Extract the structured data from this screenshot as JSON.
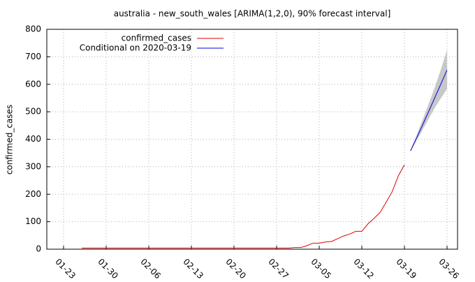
{
  "chart_data": {
    "type": "line",
    "title": "australia - new_south_wales [ARIMA(1,2,0), 90% forecast interval]",
    "y_label": "confirmed_cases",
    "categories": [
      "01-23",
      null,
      null,
      null,
      null,
      null,
      null,
      "01-30",
      null,
      null,
      null,
      null,
      null,
      null,
      "02-06",
      null,
      null,
      null,
      null,
      null,
      null,
      "02-13",
      null,
      null,
      null,
      null,
      null,
      null,
      "02-20",
      null,
      null,
      null,
      null,
      null,
      null,
      "02-27",
      null,
      null,
      null,
      null,
      null,
      null,
      "03-05",
      null,
      null,
      null,
      null,
      null,
      null,
      "03-12",
      null,
      null,
      null,
      null,
      null,
      null,
      "03-19",
      null,
      null,
      null,
      null,
      null,
      null,
      "03-26"
    ],
    "series": [
      {
        "name": "confirmed_cases",
        "color": "#e00000",
        "values": [
          null,
          null,
          null,
          4,
          4,
          4,
          4,
          4,
          4,
          4,
          4,
          4,
          4,
          4,
          4,
          4,
          4,
          4,
          4,
          4,
          4,
          4,
          4,
          4,
          4,
          4,
          4,
          4,
          4,
          4,
          4,
          4,
          4,
          4,
          4,
          4,
          4,
          4,
          6,
          6,
          13,
          22,
          22,
          26,
          28,
          38,
          48,
          55,
          65,
          65,
          92,
          112,
          134,
          171,
          210,
          267,
          307,
          null,
          null,
          null,
          null,
          null,
          null,
          null
        ]
      },
      {
        "name": "Conditional on 2020-03-19",
        "color": "#0000e0",
        "band_color": "#c8c8c8",
        "values": [
          null,
          null,
          null,
          null,
          null,
          null,
          null,
          null,
          null,
          null,
          null,
          null,
          null,
          null,
          null,
          null,
          null,
          null,
          null,
          null,
          null,
          null,
          null,
          null,
          null,
          null,
          null,
          null,
          null,
          null,
          null,
          null,
          null,
          null,
          null,
          null,
          null,
          null,
          null,
          null,
          null,
          null,
          null,
          null,
          null,
          null,
          null,
          null,
          null,
          null,
          null,
          null,
          null,
          null,
          null,
          null,
          null,
          358,
          405,
          453,
          502,
          552,
          602,
          652
        ],
        "lower": [
          null,
          null,
          null,
          null,
          null,
          null,
          null,
          null,
          null,
          null,
          null,
          null,
          null,
          null,
          null,
          null,
          null,
          null,
          null,
          null,
          null,
          null,
          null,
          null,
          null,
          null,
          null,
          null,
          null,
          null,
          null,
          null,
          null,
          null,
          null,
          null,
          null,
          null,
          null,
          null,
          null,
          null,
          null,
          null,
          null,
          null,
          null,
          null,
          null,
          null,
          null,
          null,
          null,
          null,
          null,
          null,
          null,
          355,
          395,
          435,
          475,
          515,
          550,
          583
        ],
        "upper": [
          null,
          null,
          null,
          null,
          null,
          null,
          null,
          null,
          null,
          null,
          null,
          null,
          null,
          null,
          null,
          null,
          null,
          null,
          null,
          null,
          null,
          null,
          null,
          null,
          null,
          null,
          null,
          null,
          null,
          null,
          null,
          null,
          null,
          null,
          null,
          null,
          null,
          null,
          null,
          null,
          null,
          null,
          null,
          null,
          null,
          null,
          null,
          null,
          null,
          null,
          null,
          null,
          null,
          null,
          null,
          null,
          null,
          361,
          415,
          472,
          530,
          590,
          655,
          725
        ]
      }
    ],
    "ylim": [
      0,
      800
    ],
    "yticks": [
      0,
      100,
      200,
      300,
      400,
      500,
      600,
      700,
      800
    ],
    "grid": true,
    "legend": "top-left"
  }
}
